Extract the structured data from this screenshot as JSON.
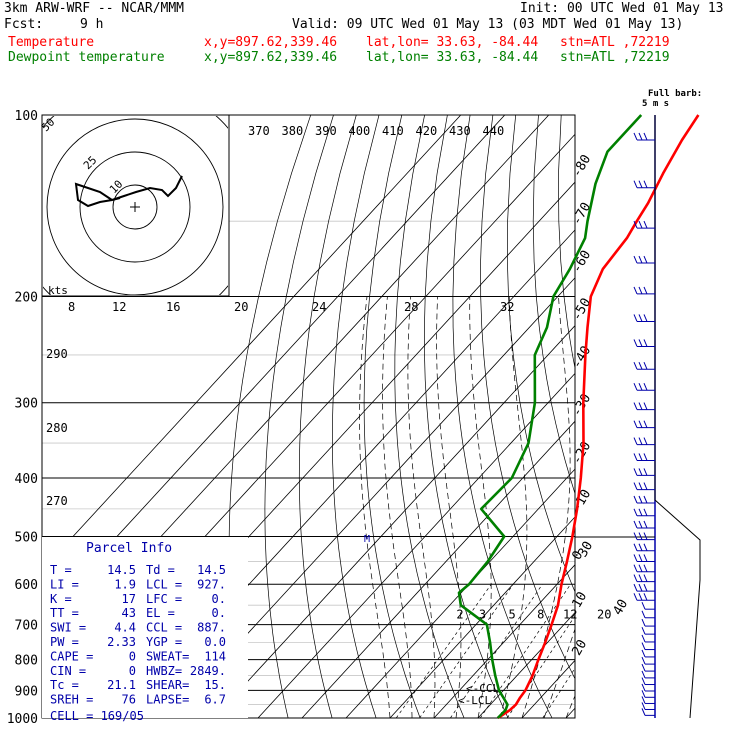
{
  "header": {
    "model": "3km ARW-WRF -- NCAR/MMM",
    "init": "Init: 00 UTC Wed 01 May 13",
    "fcst_label": "Fcst:",
    "fcst_value": "9 h",
    "valid": "Valid: 09 UTC Wed 01 May 13 (03 MDT Wed 01 May 13)",
    "temp_label": "Temperature",
    "dew_label": "Dewpoint temperature",
    "xy": "x,y=897.62,339.46",
    "latlon": "lat,lon= 33.63, -84.44",
    "station": "stn=ATL ,72219"
  },
  "colors": {
    "temperature": "#ff0000",
    "dewpoint": "#008000",
    "wind": "#0000aa",
    "axes": "#000000"
  },
  "chart_data": {
    "type": "line",
    "title": "",
    "ylabel": "",
    "y_scale": "log-pressure",
    "pressure_ticks": [
      "100",
      "200",
      "300",
      "400",
      "500",
      "600",
      "700",
      "800",
      "900",
      "1000"
    ],
    "isotherm_labels": [
      "-80",
      "-70",
      "-60",
      "-50",
      "-40",
      "-30",
      "-20",
      "-10",
      "0",
      "10",
      "20",
      "30",
      "40"
    ],
    "theta_labels": [
      "370",
      "380",
      "390",
      "400",
      "410",
      "420",
      "430",
      "440"
    ],
    "side_theta_labels": [
      "290",
      "280",
      "270"
    ],
    "mixing_ratio_labels": [
      "2",
      "3",
      "5",
      "8",
      "12",
      "20"
    ],
    "hodo_speed_labels": [
      "8",
      "12",
      "16",
      "20",
      "24",
      "28",
      "32"
    ],
    "hodo_units": "kts",
    "hodo_ring_labels": [
      "50",
      "25",
      "10"
    ],
    "full_barb_note": "Full barb:",
    "full_barb_value": "5 m s",
    "ccl_marker": "<-CCL",
    "lcl_marker": "<-LCL",
    "m_marker": "M",
    "series": [
      {
        "name": "Temperature",
        "points": [
          [
            1000,
            14.5
          ],
          [
            970,
            15.6
          ],
          [
            950,
            15.8
          ],
          [
            925,
            15.3
          ],
          [
            900,
            15.0
          ],
          [
            850,
            13.5
          ],
          [
            800,
            11.5
          ],
          [
            750,
            9.5
          ],
          [
            700,
            7.2
          ],
          [
            650,
            4.6
          ],
          [
            600,
            1.0
          ],
          [
            550,
            -2.5
          ],
          [
            500,
            -6.5
          ],
          [
            450,
            -11.2
          ],
          [
            400,
            -16.8
          ],
          [
            350,
            -23.5
          ],
          [
            300,
            -32.0
          ],
          [
            250,
            -41.5
          ],
          [
            225,
            -46.8
          ],
          [
            200,
            -52.5
          ],
          [
            180,
            -55.5
          ],
          [
            160,
            -56.5
          ],
          [
            150,
            -57.8
          ],
          [
            140,
            -59.0
          ],
          [
            125,
            -61.8
          ],
          [
            110,
            -64.5
          ],
          [
            100,
            -66.0
          ]
        ]
      },
      {
        "name": "Dewpoint temperature",
        "points": [
          [
            1000,
            14.5
          ],
          [
            970,
            14.6
          ],
          [
            950,
            13.9
          ],
          [
            925,
            11.5
          ],
          [
            900,
            9.0
          ],
          [
            850,
            5.0
          ],
          [
            800,
            1.0
          ],
          [
            750,
            -3.0
          ],
          [
            700,
            -7.5
          ],
          [
            650,
            -17.5
          ],
          [
            620,
            -20.5
          ],
          [
            600,
            -20.0
          ],
          [
            550,
            -20.5
          ],
          [
            500,
            -22.0
          ],
          [
            450,
            -33.0
          ],
          [
            400,
            -32.5
          ],
          [
            350,
            -36.0
          ],
          [
            300,
            -43.0
          ],
          [
            250,
            -53.0
          ],
          [
            225,
            -56.0
          ],
          [
            200,
            -61.0
          ],
          [
            180,
            -63.0
          ],
          [
            160,
            -66.0
          ],
          [
            150,
            -69.0
          ],
          [
            130,
            -75.0
          ],
          [
            115,
            -79.0
          ],
          [
            100,
            -79.0
          ]
        ]
      }
    ]
  },
  "parcel_info": {
    "title": "Parcel Info",
    "rows": [
      {
        "l1": "T   =",
        "v1": "14.5",
        "l2": "Td =",
        "v2": "14.5"
      },
      {
        "l1": "LI  =",
        "v1": "1.9",
        "l2": "LCL =",
        "v2": "927."
      },
      {
        "l1": "K   =",
        "v1": "17",
        "l2": "LFC =",
        "v2": "0."
      },
      {
        "l1": "TT  =",
        "v1": "43",
        "l2": "EL  =",
        "v2": "0."
      },
      {
        "l1": "SWI =",
        "v1": "4.4",
        "l2": "CCL =",
        "v2": "887."
      },
      {
        "l1": "PW  =",
        "v1": "2.33",
        "l2": "YGP =",
        "v2": "0.0"
      },
      {
        "l1": "CAPE =",
        "v1": "0",
        "l2": "SWEAT=",
        "v2": "114"
      },
      {
        "l1": "CIN  =",
        "v1": "0",
        "l2": "HWBZ=",
        "v2": "2849."
      },
      {
        "l1": "Tc   =",
        "v1": "21.1",
        "l2": "SHEAR=",
        "v2": "15."
      },
      {
        "l1": "SREH =",
        "v1": "76",
        "l2": "LAPSE=",
        "v2": "6.7"
      }
    ],
    "cell": "CELL = 169/05"
  }
}
